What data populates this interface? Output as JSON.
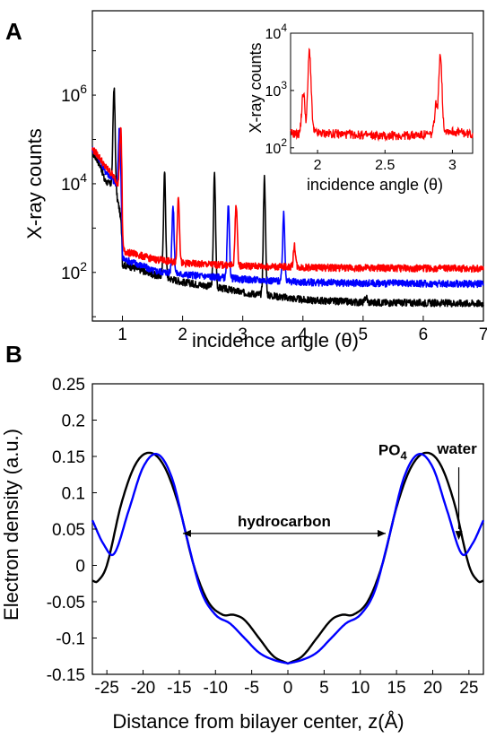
{
  "chart_data": [
    {
      "panel": "A",
      "type": "line",
      "xlabel": "incidence angle (θ)",
      "ylabel": "X-ray counts",
      "xlim": [
        0.5,
        7
      ],
      "ylim": [
        8,
        80000000
      ],
      "yscale": "log",
      "x_ticks": [
        "1",
        "2",
        "3",
        "4",
        "5",
        "6",
        "7"
      ],
      "y_ticks": [
        {
          "base": "10",
          "exp": "2"
        },
        {
          "base": "10",
          "exp": "4"
        },
        {
          "base": "10",
          "exp": "6"
        }
      ],
      "colors": {
        "series1": "#000000",
        "series2": "#0000ff",
        "series3": "#ff0000"
      },
      "series": [
        {
          "color": "#000000",
          "baseline": [
            [
              0.5,
              50000
            ],
            [
              0.7,
              12000
            ],
            [
              0.82,
              9000
            ],
            [
              1.0,
              150
            ],
            [
              1.5,
              90
            ],
            [
              2.0,
              60
            ],
            [
              3.0,
              35
            ],
            [
              4.0,
              24
            ],
            [
              5.0,
              21
            ],
            [
              7.0,
              20
            ]
          ],
          "peaks": [
            [
              0.86,
              1500000
            ],
            [
              1.7,
              18000
            ],
            [
              2.53,
              16000
            ],
            [
              3.36,
              14000
            ],
            [
              5.05,
              28
            ]
          ]
        },
        {
          "color": "#0000ff",
          "baseline": [
            [
              0.5,
              60000
            ],
            [
              0.7,
              20000
            ],
            [
              0.9,
              9000
            ],
            [
              1.0,
              200
            ],
            [
              1.5,
              110
            ],
            [
              2.0,
              90
            ],
            [
              3.0,
              70
            ],
            [
              4.0,
              60
            ],
            [
              5.0,
              57
            ],
            [
              7.0,
              55
            ]
          ],
          "peaks": [
            [
              0.95,
              200000
            ],
            [
              1.84,
              3000
            ],
            [
              2.76,
              3000
            ],
            [
              3.68,
              2000
            ]
          ]
        },
        {
          "color": "#ff0000",
          "baseline": [
            [
              0.5,
              60000
            ],
            [
              0.7,
              25000
            ],
            [
              0.92,
              10000
            ],
            [
              1.0,
              300
            ],
            [
              1.5,
              200
            ],
            [
              2.0,
              160
            ],
            [
              3.0,
              140
            ],
            [
              4.0,
              130
            ],
            [
              5.0,
              125
            ],
            [
              7.0,
              122
            ]
          ],
          "peaks": [
            [
              0.97,
              180000
            ],
            [
              1.93,
              5000
            ],
            [
              2.89,
              3500
            ],
            [
              3.86,
              400
            ]
          ]
        }
      ],
      "inset": {
        "xlabel": "incidence angle (θ)",
        "ylabel": "X-ray counts",
        "xlim": [
          1.8,
          3.15
        ],
        "ylim": [
          80,
          10000
        ],
        "yscale": "log",
        "x_ticks": [
          "2",
          "2.5",
          "3"
        ],
        "y_ticks": [
          {
            "base": "10",
            "exp": "2"
          },
          {
            "base": "10",
            "exp": "3"
          },
          {
            "base": "10",
            "exp": "4"
          }
        ],
        "series_color": "#ff0000",
        "baseline": [
          [
            1.8,
            180
          ],
          [
            1.87,
            170
          ],
          [
            1.9,
            200
          ],
          [
            2.0,
            180
          ],
          [
            2.5,
            160
          ],
          [
            2.85,
            170
          ],
          [
            2.95,
            200
          ],
          [
            3.15,
            170
          ]
        ],
        "peaks": [
          [
            1.895,
            900
          ],
          [
            1.94,
            5000
          ],
          [
            2.88,
            600
          ],
          [
            2.91,
            4600
          ]
        ]
      }
    },
    {
      "panel": "B",
      "type": "line",
      "xlabel": "Distance from bilayer center, z(Å)",
      "ylabel": "Electron density (a.u.)",
      "xlim": [
        -27,
        27
      ],
      "ylim": [
        -0.15,
        0.25
      ],
      "x_ticks": [
        "-25",
        "-20",
        "-15",
        "-10",
        "-5",
        "0",
        "5",
        "10",
        "15",
        "20",
        "25"
      ],
      "y_ticks": [
        "-0.15",
        "-0.1",
        "-0.05",
        "0",
        "0.05",
        "0.1",
        "0.15",
        "0.2",
        "0.25"
      ],
      "series": [
        {
          "color": "#000000",
          "points": [
            [
              0,
              -0.135
            ],
            [
              2,
              -0.125
            ],
            [
              4,
              -0.1
            ],
            [
              6,
              -0.075
            ],
            [
              7.5,
              -0.068
            ],
            [
              9,
              -0.068
            ],
            [
              11,
              -0.05
            ],
            [
              13,
              0.0
            ],
            [
              15,
              0.08
            ],
            [
              17,
              0.135
            ],
            [
              19,
              0.155
            ],
            [
              21,
              0.14
            ],
            [
              23,
              0.085
            ],
            [
              25,
              0.0
            ],
            [
              26.3,
              -0.022
            ],
            [
              27,
              -0.021
            ]
          ]
        },
        {
          "color": "#0000ff",
          "points": [
            [
              0,
              -0.135
            ],
            [
              2,
              -0.13
            ],
            [
              4,
              -0.12
            ],
            [
              6,
              -0.1
            ],
            [
              8,
              -0.08
            ],
            [
              10,
              -0.068
            ],
            [
              12,
              -0.035
            ],
            [
              14,
              0.04
            ],
            [
              16,
              0.12
            ],
            [
              18,
              0.153
            ],
            [
              20,
              0.135
            ],
            [
              22,
              0.075
            ],
            [
              24,
              0.016
            ],
            [
              25.5,
              0.03
            ],
            [
              27,
              0.062
            ]
          ]
        }
      ],
      "annotations": {
        "hydrocarbon": "hydrocarbon",
        "po4_base": "PO",
        "po4_sub": "4",
        "water": "water"
      }
    }
  ],
  "panel_labels": {
    "a": "A",
    "b": "B"
  }
}
